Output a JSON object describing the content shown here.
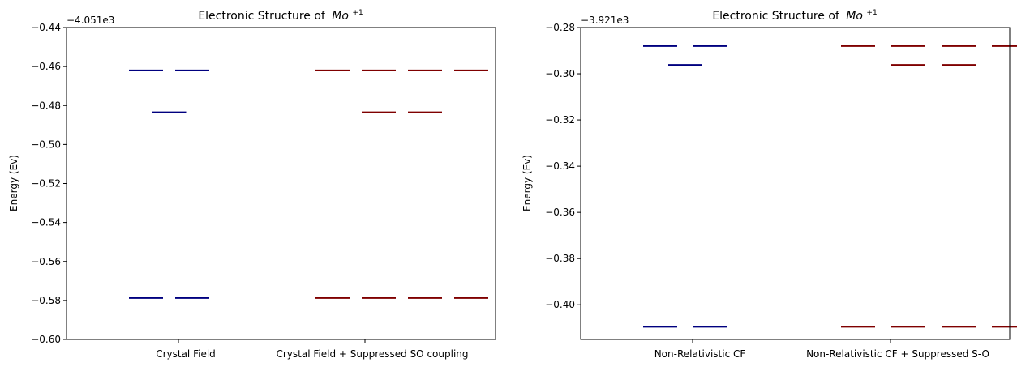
{
  "chart_data": [
    {
      "type": "energy-level",
      "title": "Electronic Structure of",
      "title_species": "Mo",
      "title_superscript": "+1",
      "ylabel": "Energy (Ev)",
      "offset_text": "−4.051e3",
      "ylim": [
        -0.6,
        -0.44
      ],
      "yticks": [
        -0.44,
        -0.46,
        -0.48,
        -0.5,
        -0.52,
        -0.54,
        -0.56,
        -0.58,
        -0.6
      ],
      "ytick_labels": [
        "−0.44",
        "−0.46",
        "−0.48",
        "−0.50",
        "−0.52",
        "−0.54",
        "−0.56",
        "−0.58",
        "−0.60"
      ],
      "categories": [
        "Crystal Field",
        "Crystal Field + Suppressed SO coupling"
      ],
      "colors": [
        "#00007f",
        "#7f0000"
      ],
      "levels": [
        [
          {
            "energy": -0.462,
            "slot": 0
          },
          {
            "energy": -0.462,
            "slot": 1
          },
          {
            "energy": -0.4835,
            "slot": 0.5
          },
          {
            "energy": -0.5787,
            "slot": 0
          },
          {
            "energy": -0.5787,
            "slot": 1
          }
        ],
        [
          {
            "energy": -0.462,
            "slot": 0
          },
          {
            "energy": -0.462,
            "slot": 1
          },
          {
            "energy": -0.462,
            "slot": 2
          },
          {
            "energy": -0.462,
            "slot": 3
          },
          {
            "energy": -0.4835,
            "slot": 1
          },
          {
            "energy": -0.4835,
            "slot": 2
          },
          {
            "energy": -0.5787,
            "slot": 0
          },
          {
            "energy": -0.5787,
            "slot": 1
          },
          {
            "energy": -0.5787,
            "slot": 2
          },
          {
            "energy": -0.5787,
            "slot": 3
          }
        ]
      ]
    },
    {
      "type": "energy-level",
      "title": "Electronic Structure of",
      "title_species": "Mo",
      "title_superscript": "+1",
      "ylabel": "Energy (Ev)",
      "offset_text": "−3.921e3",
      "ylim": [
        -0.415,
        -0.28
      ],
      "yticks": [
        -0.28,
        -0.3,
        -0.32,
        -0.34,
        -0.36,
        -0.38,
        -0.4
      ],
      "ytick_labels": [
        "−0.28",
        "−0.30",
        "−0.32",
        "−0.34",
        "−0.36",
        "−0.38",
        "−0.40"
      ],
      "categories": [
        "Non-Relativistic CF",
        "Non-Relativistic CF + Suppressed S-O"
      ],
      "colors": [
        "#00007f",
        "#7f0000"
      ],
      "levels": [
        [
          {
            "energy": -0.288,
            "slot": 0
          },
          {
            "energy": -0.288,
            "slot": 1
          },
          {
            "energy": -0.2962,
            "slot": 0.5
          },
          {
            "energy": -0.4095,
            "slot": 0
          },
          {
            "energy": -0.4095,
            "slot": 1
          }
        ],
        [
          {
            "energy": -0.288,
            "slot": 0
          },
          {
            "energy": -0.288,
            "slot": 1
          },
          {
            "energy": -0.288,
            "slot": 2
          },
          {
            "energy": -0.288,
            "slot": 3
          },
          {
            "energy": -0.2962,
            "slot": 1
          },
          {
            "energy": -0.2962,
            "slot": 2
          },
          {
            "energy": -0.4095,
            "slot": 0
          },
          {
            "energy": -0.4095,
            "slot": 1
          },
          {
            "energy": -0.4095,
            "slot": 2
          },
          {
            "energy": -0.4095,
            "slot": 3
          }
        ]
      ]
    }
  ]
}
